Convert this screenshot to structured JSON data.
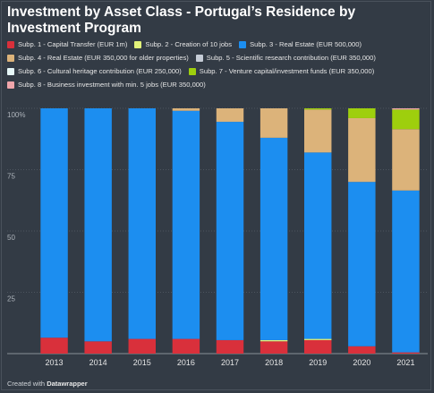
{
  "title": "Investment by Asset Class - Portugal’s Residence by Investment Program",
  "credit": {
    "prefix": "Created with",
    "brand": "Datawrapper"
  },
  "chart_data": {
    "type": "bar",
    "stacked": true,
    "normalized": true,
    "categories": [
      "2013",
      "2014",
      "2015",
      "2016",
      "2017",
      "2018",
      "2019",
      "2020",
      "2021"
    ],
    "y_ticks": [
      {
        "value": 0,
        "label": ""
      },
      {
        "value": 25,
        "label": "25"
      },
      {
        "value": 50,
        "label": "50"
      },
      {
        "value": 75,
        "label": "75"
      },
      {
        "value": 100,
        "label": "100%"
      }
    ],
    "ylim": [
      0,
      100
    ],
    "grid": true,
    "legend_position": "top",
    "series": [
      {
        "name": "Subp. 1 - Capital Transfer (EUR 1m)",
        "color": "#d9303b",
        "values": [
          6.5,
          5,
          6,
          6,
          5.5,
          5,
          5.5,
          3,
          0.5
        ]
      },
      {
        "name": "Subp. 2 - Creation of 10 jobs",
        "color": "#e2f27a",
        "values": [
          0,
          0,
          0,
          0,
          0,
          0.5,
          0.5,
          0,
          0
        ]
      },
      {
        "name": "Subp. 3 - Real Estate (EUR 500,000)",
        "color": "#1c8ef0",
        "values": [
          93.5,
          95,
          94,
          93,
          89,
          82.5,
          76,
          67,
          66
        ]
      },
      {
        "name": "Subp. 4 - Real Estate (EUR 350,000 for older properties)",
        "color": "#dcb37a",
        "values": [
          0,
          0,
          0,
          1,
          5.5,
          12,
          17.5,
          26,
          25
        ]
      },
      {
        "name": "Subp. 5 - Scientific research contribution (EUR 350,000)",
        "color": "#c5ccd6",
        "values": [
          0,
          0,
          0,
          0,
          0,
          0,
          0,
          0,
          0
        ]
      },
      {
        "name": "Subp. 6 - Cultural heritage contribution (EUR 250,000)",
        "color": "#e6f7f7",
        "values": [
          0,
          0,
          0,
          0,
          0,
          0,
          0,
          0,
          0
        ]
      },
      {
        "name": "Subp. 7 - Venture capital/investment funds (EUR 350,000)",
        "color": "#9ecf0d",
        "values": [
          0,
          0,
          0,
          0,
          0,
          0,
          0.5,
          4,
          8
        ]
      },
      {
        "name": "Subp. 8 - Business investment with min. 5 jobs (EUR 350,000)",
        "color": "#f0a6ab",
        "values": [
          0,
          0,
          0,
          0,
          0,
          0,
          0,
          0,
          0.5
        ]
      }
    ]
  }
}
